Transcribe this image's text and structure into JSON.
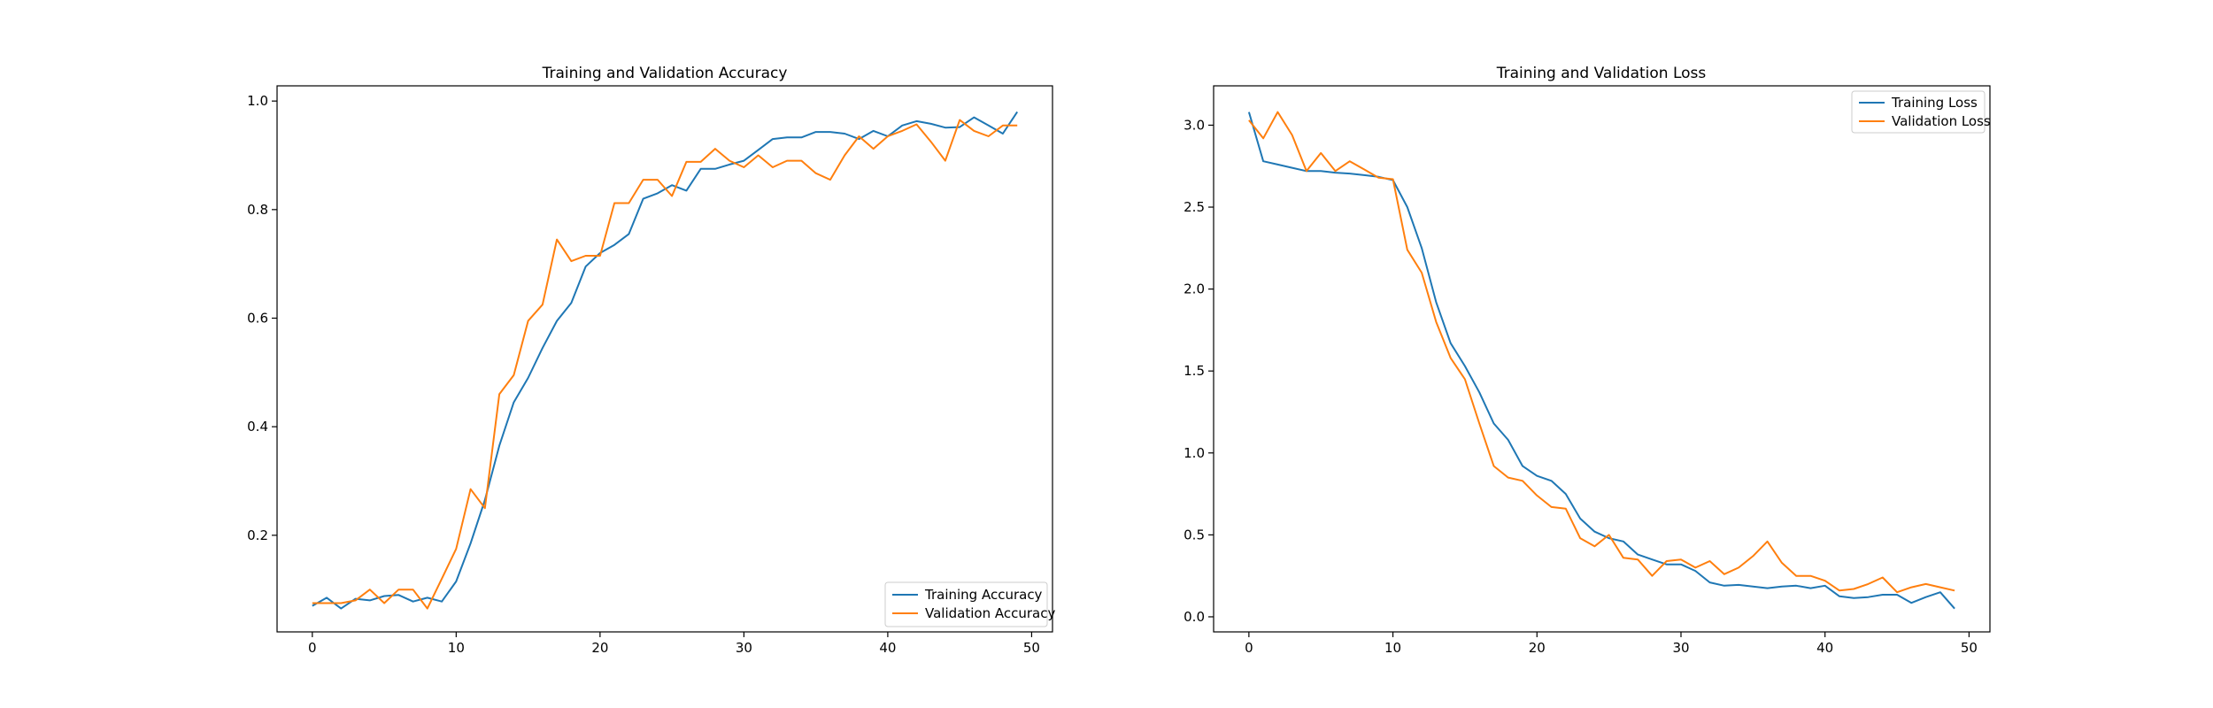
{
  "chart_data": [
    {
      "type": "line",
      "title": "Training and Validation Accuracy",
      "xlabel": "",
      "ylabel": "",
      "xlim": [
        -2.45,
        51.45
      ],
      "ylim": [
        0.022,
        1.028
      ],
      "xticks": [
        0,
        10,
        20,
        30,
        40,
        50
      ],
      "yticks": [
        0.2,
        0.4,
        0.6,
        0.8,
        1.0
      ],
      "ytick_labels": [
        "0.2",
        "0.4",
        "0.6",
        "0.8",
        "1.0"
      ],
      "legend_position": "lower-right",
      "grid": false,
      "x": [
        0,
        1,
        2,
        3,
        4,
        5,
        6,
        7,
        8,
        9,
        10,
        11,
        12,
        13,
        14,
        15,
        16,
        17,
        18,
        19,
        20,
        21,
        22,
        23,
        24,
        25,
        26,
        27,
        28,
        29,
        30,
        31,
        32,
        33,
        34,
        35,
        36,
        37,
        38,
        39,
        40,
        41,
        42,
        43,
        44,
        45,
        46,
        47,
        48,
        49
      ],
      "series": [
        {
          "name": "Training Accuracy",
          "color": "#1f77b4",
          "values": [
            0.07,
            0.085,
            0.065,
            0.083,
            0.08,
            0.088,
            0.09,
            0.078,
            0.085,
            0.078,
            0.115,
            0.185,
            0.265,
            0.365,
            0.445,
            0.49,
            0.545,
            0.595,
            0.628,
            0.695,
            0.72,
            0.735,
            0.755,
            0.82,
            0.83,
            0.845,
            0.835,
            0.875,
            0.875,
            0.883,
            0.89,
            0.91,
            0.93,
            0.933,
            0.933,
            0.943,
            0.943,
            0.94,
            0.93,
            0.945,
            0.935,
            0.955,
            0.963,
            0.958,
            0.951,
            0.952,
            0.97,
            0.955,
            0.94,
            0.98
          ]
        },
        {
          "name": "Validation Accuracy",
          "color": "#ff7f0e",
          "values": [
            0.075,
            0.075,
            0.075,
            0.08,
            0.1,
            0.075,
            0.1,
            0.1,
            0.065,
            0.12,
            0.175,
            0.285,
            0.25,
            0.46,
            0.495,
            0.595,
            0.625,
            0.745,
            0.705,
            0.715,
            0.715,
            0.812,
            0.812,
            0.855,
            0.855,
            0.825,
            0.888,
            0.888,
            0.912,
            0.89,
            0.878,
            0.9,
            0.878,
            0.89,
            0.89,
            0.867,
            0.855,
            0.9,
            0.935,
            0.912,
            0.935,
            0.945,
            0.957,
            0.925,
            0.89,
            0.965,
            0.945,
            0.935,
            0.955,
            0.955
          ]
        }
      ]
    },
    {
      "type": "line",
      "title": "Training and Validation Loss",
      "xlabel": "",
      "ylabel": "",
      "xlim": [
        -2.45,
        51.45
      ],
      "ylim": [
        -0.092,
        3.24
      ],
      "xticks": [
        0,
        10,
        20,
        30,
        40,
        50
      ],
      "yticks": [
        0.0,
        0.5,
        1.0,
        1.5,
        2.0,
        2.5,
        3.0
      ],
      "ytick_labels": [
        "0.0",
        "0.5",
        "1.0",
        "1.5",
        "2.0",
        "2.5",
        "3.0"
      ],
      "legend_position": "upper-right",
      "grid": false,
      "x": [
        0,
        1,
        2,
        3,
        4,
        5,
        6,
        7,
        8,
        9,
        10,
        11,
        12,
        13,
        14,
        15,
        16,
        17,
        18,
        19,
        20,
        21,
        22,
        23,
        24,
        25,
        26,
        27,
        28,
        29,
        30,
        31,
        32,
        33,
        34,
        35,
        36,
        37,
        38,
        39,
        40,
        41,
        42,
        43,
        44,
        45,
        46,
        47,
        48,
        49
      ],
      "series": [
        {
          "name": "Training Loss",
          "color": "#1f77b4",
          "values": [
            3.08,
            2.78,
            2.76,
            2.74,
            2.72,
            2.72,
            2.71,
            2.705,
            2.695,
            2.685,
            2.665,
            2.5,
            2.25,
            1.92,
            1.67,
            1.53,
            1.37,
            1.18,
            1.08,
            0.92,
            0.86,
            0.83,
            0.75,
            0.6,
            0.52,
            0.48,
            0.46,
            0.38,
            0.35,
            0.32,
            0.32,
            0.28,
            0.21,
            0.19,
            0.195,
            0.185,
            0.175,
            0.185,
            0.19,
            0.175,
            0.19,
            0.125,
            0.115,
            0.12,
            0.135,
            0.135,
            0.085,
            0.12,
            0.15,
            0.05
          ]
        },
        {
          "name": "Validation Loss",
          "color": "#ff7f0e",
          "values": [
            3.03,
            2.92,
            3.08,
            2.94,
            2.72,
            2.83,
            2.72,
            2.78,
            2.73,
            2.68,
            2.67,
            2.24,
            2.1,
            1.8,
            1.58,
            1.45,
            1.18,
            0.92,
            0.85,
            0.83,
            0.74,
            0.67,
            0.66,
            0.48,
            0.43,
            0.5,
            0.36,
            0.35,
            0.25,
            0.34,
            0.35,
            0.3,
            0.34,
            0.26,
            0.3,
            0.37,
            0.46,
            0.33,
            0.25,
            0.25,
            0.22,
            0.16,
            0.17,
            0.2,
            0.24,
            0.15,
            0.18,
            0.2,
            0.18,
            0.16
          ]
        }
      ]
    }
  ]
}
